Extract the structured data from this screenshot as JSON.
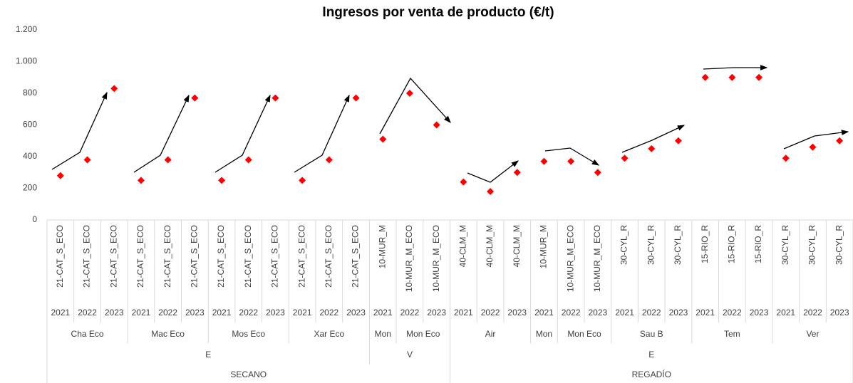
{
  "chart_data": {
    "type": "scatter",
    "title": "Ingresos por venta de producto (€/t)",
    "categories": [
      "21-CAT_S_ECO",
      "21-CAT_S_ECO",
      "21-CAT_S_ECO",
      "21-CAT_S_ECO",
      "21-CAT_S_ECO",
      "21-CAT_S_ECO",
      "21-CAT_S_ECO",
      "21-CAT_S_ECO",
      "21-CAT_S_ECO",
      "21-CAT_S_ECO",
      "21-CAT_S_ECO",
      "21-CAT_S_ECO",
      "10-MUR_M",
      "10-MUR_M_ECO",
      "10-MUR_M_ECO",
      "40-CLM_M",
      "40-CLM_M",
      "40-CLM_M",
      "10-MUR_M",
      "10-MUR_M_ECO",
      "10-MUR_M_ECO",
      "30-CYL_R",
      "30-CYL_R",
      "30-CYL_R",
      "15-RIO_R",
      "15-RIO_R",
      "15-RIO_R",
      "30-CYL_R",
      "30-CYL_R",
      "30-CYL_R"
    ],
    "years": [
      "2021",
      "2022",
      "2023",
      "2021",
      "2022",
      "2023",
      "2021",
      "2022",
      "2023",
      "2021",
      "2022",
      "2023",
      "2021",
      "2022",
      "2023",
      "2021",
      "2022",
      "2023",
      "2021",
      "2022",
      "2023",
      "2021",
      "2022",
      "2023",
      "2021",
      "2022",
      "2023",
      "2021",
      "2022",
      "2023"
    ],
    "groups": [
      "Cha Eco",
      null,
      null,
      "Mac Eco",
      null,
      null,
      "Mos Eco",
      null,
      null,
      "Xar Eco",
      null,
      null,
      "Mon",
      "Mon Eco",
      null,
      "Air",
      null,
      null,
      "Mon",
      "Mon Eco",
      null,
      "Sau B",
      null,
      null,
      "Tem",
      null,
      null,
      "Ver",
      null,
      null
    ],
    "levels": [
      "E",
      null,
      null,
      null,
      null,
      null,
      null,
      null,
      null,
      null,
      null,
      null,
      "V",
      null,
      null,
      "E",
      null,
      null,
      null,
      null,
      null,
      null,
      null,
      null,
      null,
      null,
      null,
      null,
      null,
      null
    ],
    "systems": [
      "SECANO",
      null,
      null,
      null,
      null,
      null,
      null,
      null,
      null,
      null,
      null,
      null,
      null,
      null,
      null,
      "REGADÍO",
      null,
      null,
      null,
      null,
      null,
      null,
      null,
      null,
      null,
      null,
      null,
      null,
      null,
      null
    ],
    "values": [
      280,
      380,
      830,
      250,
      380,
      770,
      250,
      380,
      770,
      250,
      380,
      770,
      510,
      800,
      600,
      240,
      180,
      300,
      370,
      370,
      300,
      390,
      450,
      500,
      900,
      900,
      900,
      390,
      460,
      500
    ],
    "color": "#ff0000",
    "ylim": [
      0,
      1200
    ],
    "yticks": [
      0,
      200,
      400,
      600,
      800,
      {
        "value": 1000,
        "label": "1.000"
      },
      {
        "value": 1200,
        "label": "1.200"
      }
    ],
    "grid": false
  }
}
